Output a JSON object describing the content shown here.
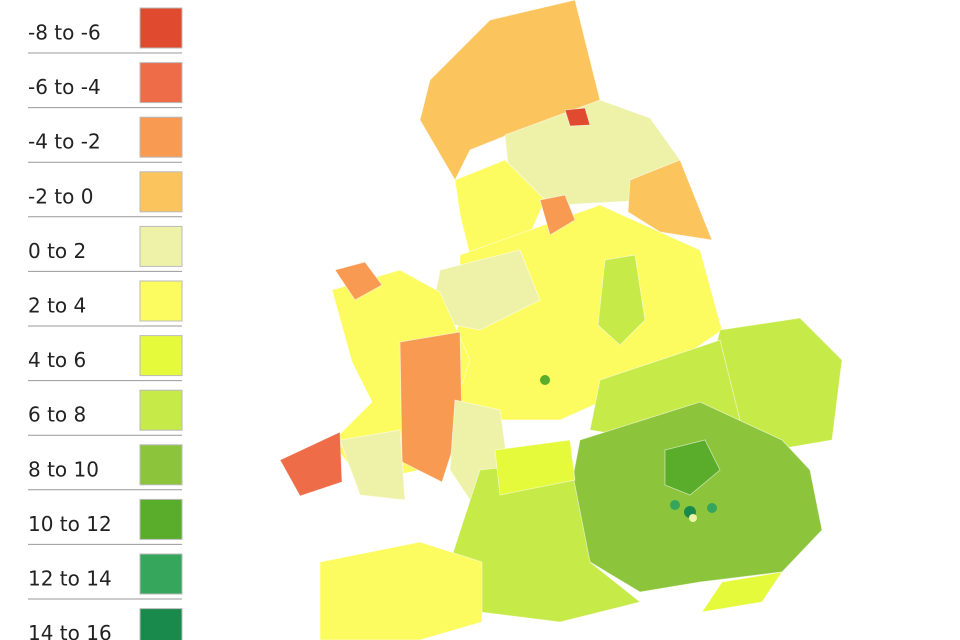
{
  "legend": {
    "items": [
      {
        "label": "-8 to -6",
        "color": "#e04a2e"
      },
      {
        "label": "-6 to -4",
        "color": "#ee6c48"
      },
      {
        "label": "-4 to -2",
        "color": "#f89a52"
      },
      {
        "label": "-2 to 0",
        "color": "#fcc45c"
      },
      {
        "label": "0 to 2",
        "color": "#eef2a8"
      },
      {
        "label": "2 to 4",
        "color": "#fcfc60"
      },
      {
        "label": "4 to 6",
        "color": "#e4fa3a"
      },
      {
        "label": "6 to 8",
        "color": "#c6ea48"
      },
      {
        "label": "8 to 10",
        "color": "#8cc43c"
      },
      {
        "label": "10 to 12",
        "color": "#5aad2a"
      },
      {
        "label": "12 to 14",
        "color": "#36a65c"
      },
      {
        "label": "14 to 16",
        "color": "#1a8a4c"
      }
    ]
  }
}
